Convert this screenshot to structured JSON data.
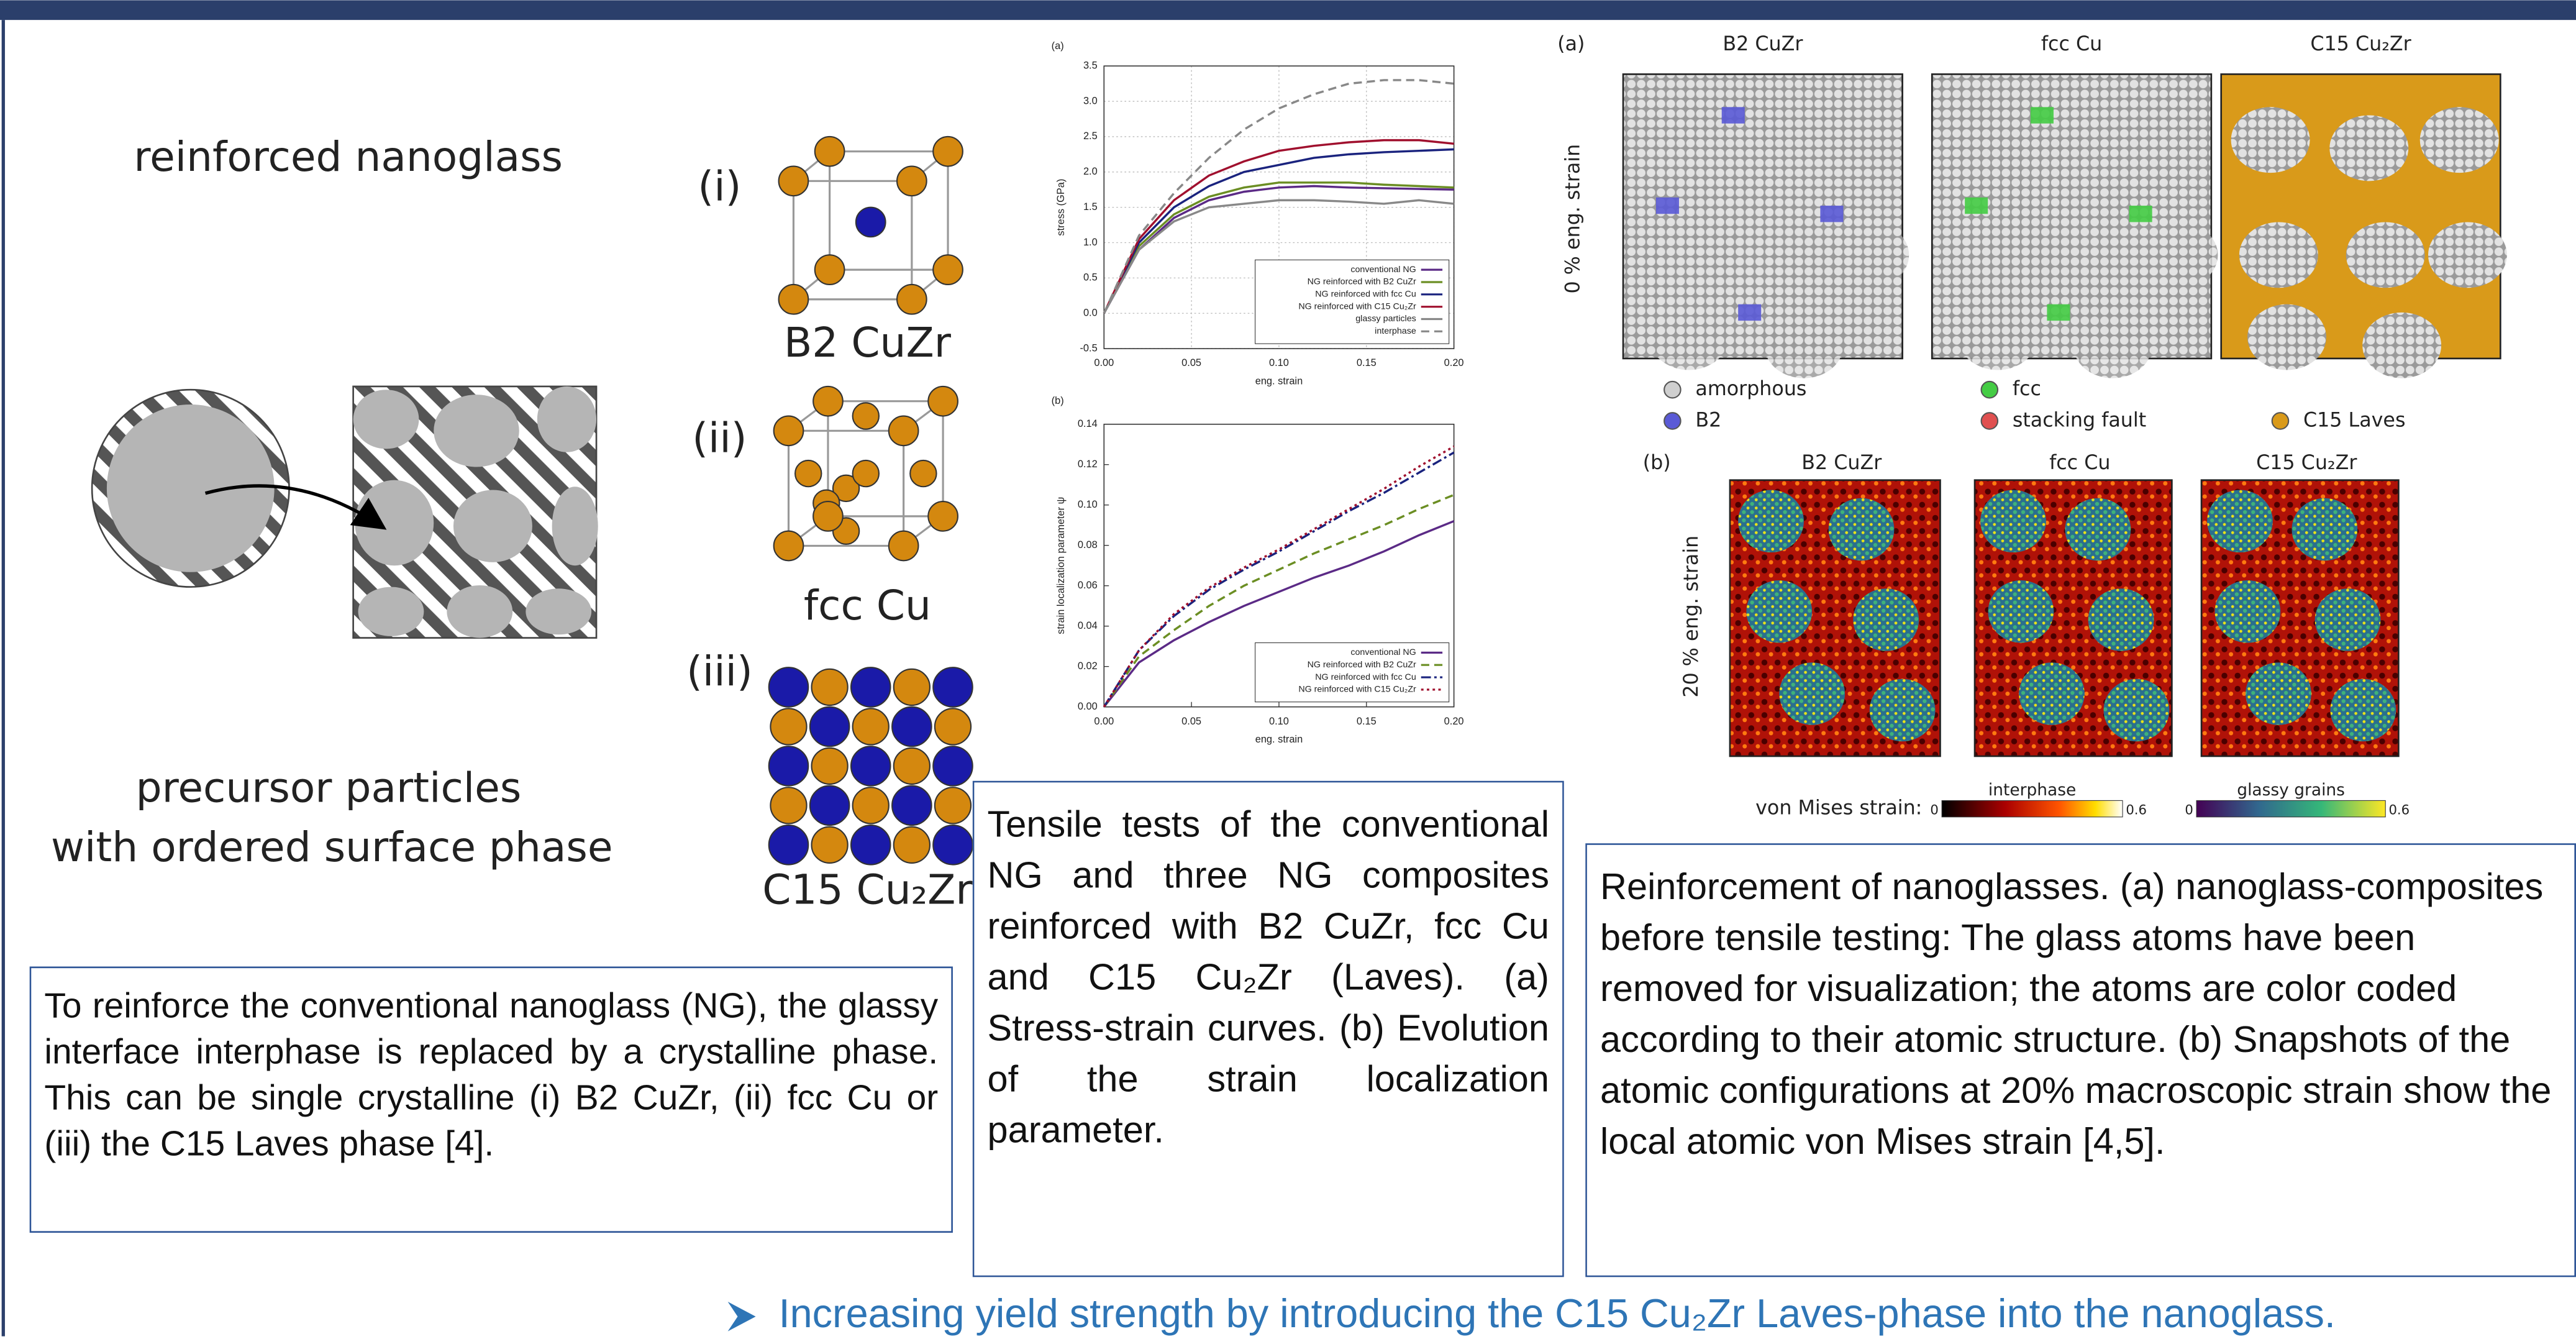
{
  "illustration": {
    "title": "reinforced nanoglass",
    "caption": [
      "precursor particles",
      "with ordered surface phase"
    ]
  },
  "structures": [
    {
      "numeral": "(i)",
      "label": "B2 CuZr"
    },
    {
      "numeral": "(ii)",
      "label": "fcc Cu"
    },
    {
      "numeral": "(iii)",
      "label": "C15 Cu₂Zr"
    }
  ],
  "boxes": {
    "left": "To reinforce the conventional nanoglass (NG), the glassy interface interphase is replaced by a crystalline phase. This can be single crystalline (i) B2 CuZr, (ii) fcc Cu or (iii) the C15 Laves phase [4].",
    "middle": "Tensile tests of the conventional NG and three NG composites reinforced with B2 CuZr, fcc Cu and C15 Cu₂Zr (Laves). (a) Stress-strain curves. (b) Evolution of the strain localization parameter.",
    "right": "Reinforcement of nanoglasses. (a) nanoglass-composites before tensile testing: The glass atoms have been removed for visualization; the atoms are color coded according to their atomic structure. (b) Snapshots of the atomic configurations at 20% macroscopic strain show the local atomic von Mises strain [4,5]."
  },
  "chart_data": [
    {
      "type": "line",
      "label": "(a)",
      "xlabel": "eng. strain",
      "ylabel": "stress (GPa)",
      "grid": true,
      "legend": "lower right",
      "xlim": [
        0,
        0.2
      ],
      "ylim": [
        -0.5,
        3.5
      ],
      "xticks": [
        {
          "value": 0,
          "label": "0.00"
        },
        0.05,
        {
          "value": 0.1,
          "label": "0.10"
        },
        0.15,
        {
          "value": 0.2,
          "label": "0.20"
        }
      ],
      "yticks": [
        -0.5,
        {
          "value": 0,
          "label": "0.0"
        },
        0.5,
        {
          "value": 1,
          "label": "1.0"
        },
        1.5,
        {
          "value": 2,
          "label": "2.0"
        },
        2.5,
        {
          "value": 3,
          "label": "3.0"
        },
        3.5
      ],
      "x": [
        0,
        0.02,
        0.04,
        0.06,
        0.08,
        0.1,
        0.12,
        0.14,
        0.16,
        0.18,
        0.2
      ],
      "series": [
        {
          "name": "conventional NG",
          "color": "#5b2a86",
          "style": "solid",
          "values": [
            0,
            0.9,
            1.35,
            1.6,
            1.72,
            1.78,
            1.8,
            1.78,
            1.77,
            1.76,
            1.75
          ]
        },
        {
          "name": "NG reinforced with B2 CuZr",
          "color": "#6b8e23",
          "style": "solid",
          "values": [
            0,
            0.95,
            1.4,
            1.65,
            1.78,
            1.85,
            1.85,
            1.85,
            1.82,
            1.8,
            1.78
          ]
        },
        {
          "name": "NG reinforced with fcc Cu",
          "color": "#1a237e",
          "style": "solid",
          "values": [
            0,
            1.0,
            1.5,
            1.8,
            2.0,
            2.1,
            2.2,
            2.25,
            2.28,
            2.3,
            2.32
          ]
        },
        {
          "name": "NG reinforced with C15 Cu₂Zr",
          "color": "#a0102e",
          "style": "solid",
          "values": [
            0,
            1.05,
            1.6,
            1.95,
            2.15,
            2.3,
            2.37,
            2.42,
            2.45,
            2.45,
            2.4
          ]
        },
        {
          "name": "glassy particles",
          "color": "#888888",
          "style": "solid",
          "values": [
            0,
            0.9,
            1.3,
            1.5,
            1.55,
            1.6,
            1.6,
            1.58,
            1.55,
            1.6,
            1.55
          ]
        },
        {
          "name": "interphase",
          "color": "#888888",
          "style": "dashed",
          "values": [
            0,
            1.1,
            1.7,
            2.2,
            2.6,
            2.9,
            3.1,
            3.25,
            3.3,
            3.3,
            3.25
          ]
        }
      ]
    },
    {
      "type": "line",
      "label": "(b)",
      "xlabel": "eng. strain",
      "ylabel": "strain localization parameter ψ",
      "grid": false,
      "legend": "lower right",
      "xlim": [
        0,
        0.2
      ],
      "ylim": [
        0,
        0.14
      ],
      "xticks": [
        {
          "value": 0,
          "label": "0.00"
        },
        0.05,
        {
          "value": 0.1,
          "label": "0.10"
        },
        0.15,
        {
          "value": 0.2,
          "label": "0.20"
        }
      ],
      "yticks": [
        {
          "value": 0,
          "label": "0.00"
        },
        {
          "value": 0.02,
          "label": "0.02"
        },
        {
          "value": 0.04,
          "label": "0.04"
        },
        {
          "value": 0.06,
          "label": "0.06"
        },
        {
          "value": 0.08,
          "label": "0.08"
        },
        {
          "value": 0.1,
          "label": "0.10"
        },
        {
          "value": 0.12,
          "label": "0.12"
        },
        {
          "value": 0.14,
          "label": "0.14"
        }
      ],
      "x": [
        0,
        0.02,
        0.04,
        0.06,
        0.08,
        0.1,
        0.12,
        0.14,
        0.16,
        0.18,
        0.2
      ],
      "series": [
        {
          "name": "conventional NG",
          "color": "#5b2a86",
          "style": "solid",
          "values": [
            0,
            0.022,
            0.033,
            0.042,
            0.05,
            0.057,
            0.064,
            0.07,
            0.077,
            0.085,
            0.092
          ]
        },
        {
          "name": "NG reinforced with B2 CuZr",
          "color": "#6b8e23",
          "style": "dashed",
          "values": [
            0,
            0.025,
            0.038,
            0.05,
            0.06,
            0.068,
            0.076,
            0.083,
            0.09,
            0.098,
            0.105
          ]
        },
        {
          "name": "NG reinforced with fcc Cu",
          "color": "#1a237e",
          "style": "dashdot",
          "values": [
            0,
            0.028,
            0.045,
            0.058,
            0.068,
            0.077,
            0.087,
            0.097,
            0.106,
            0.116,
            0.126
          ]
        },
        {
          "name": "NG reinforced with C15 Cu₂Zr",
          "color": "#a0102e",
          "style": "dotted",
          "values": [
            0,
            0.028,
            0.046,
            0.059,
            0.069,
            0.078,
            0.088,
            0.098,
            0.108,
            0.119,
            0.129
          ]
        }
      ]
    }
  ],
  "snapshots": {
    "panel_a": "(a)",
    "columns_a": [
      "B2 CuZr",
      "fcc Cu",
      "C15 Cu₂Zr"
    ],
    "row_a": "0 % eng. strain",
    "legend": [
      "amorphous",
      "B2",
      "fcc",
      "stacking fault",
      "C15 Laves"
    ],
    "panel_b": "(b)",
    "columns_b": [
      "B2 CuZr",
      "fcc Cu",
      "C15 Cu₂Zr"
    ],
    "row_b": "20 % eng. strain",
    "colorbar": {
      "label": "von Mises strain:",
      "bars": [
        {
          "title": "interphase",
          "min": 0,
          "max": 0.6
        },
        {
          "title": "glassy grains",
          "min": 0,
          "max": 0.6
        }
      ]
    }
  },
  "footer": "Increasing yield strength by introducing the C15 Cu₂Zr Laves-phase into the nanoglass."
}
